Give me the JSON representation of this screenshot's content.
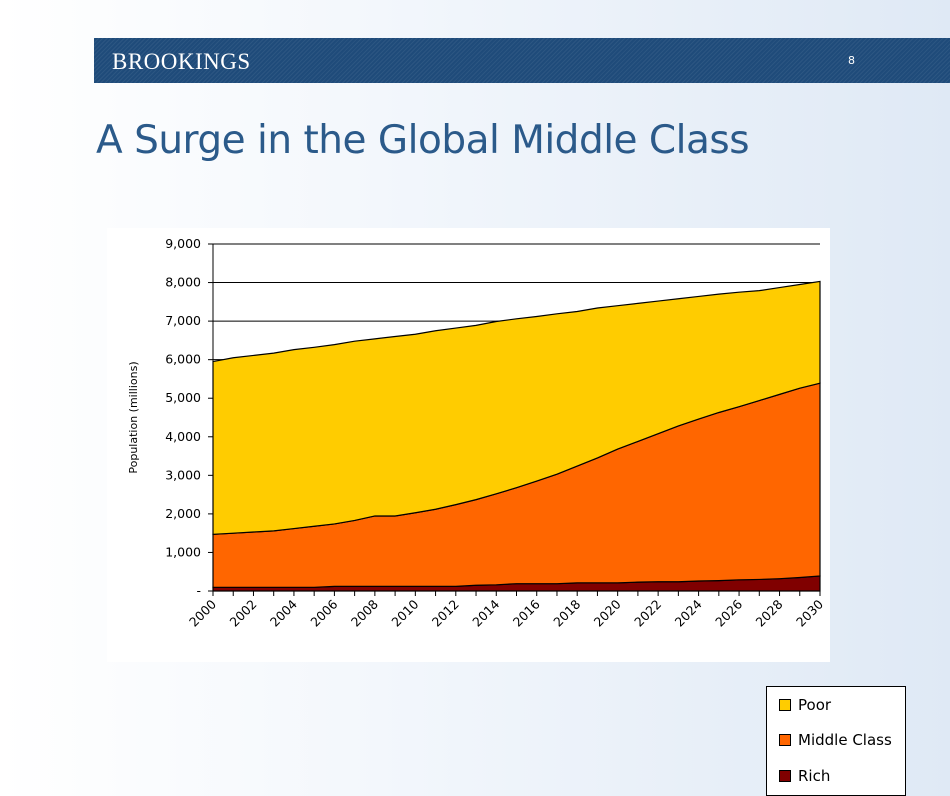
{
  "header": {
    "brand": "BROOKINGS",
    "page_number": "8"
  },
  "title": "A Surge in the Global Middle Class",
  "chart_data": {
    "type": "area",
    "stacked": true,
    "ylabel": "Population (millions)",
    "xlabel": "",
    "ylim": [
      0,
      9000
    ],
    "yticks": [
      0,
      1000,
      2000,
      3000,
      4000,
      5000,
      6000,
      7000,
      8000,
      9000
    ],
    "ytick_labels": [
      "-",
      "1,000",
      "2,000",
      "3,000",
      "4,000",
      "5,000",
      "6,000",
      "7,000",
      "8,000",
      "9,000"
    ],
    "xtick_labels": [
      "2000",
      "2002",
      "2004",
      "2006",
      "2008",
      "2010",
      "2012",
      "2014",
      "2016",
      "2018",
      "2020",
      "2022",
      "2024",
      "2026",
      "2028",
      "2030"
    ],
    "x": [
      2000,
      2001,
      2002,
      2003,
      2004,
      2005,
      2006,
      2007,
      2008,
      2009,
      2010,
      2011,
      2012,
      2013,
      2014,
      2015,
      2016,
      2017,
      2018,
      2019,
      2020,
      2021,
      2022,
      2023,
      2024,
      2025,
      2026,
      2027,
      2028,
      2029,
      2030
    ],
    "grid": "horizontal",
    "legend_position": "bottom-right",
    "series": [
      {
        "name": "Rich",
        "color": "#800000",
        "values": [
          95,
          95,
          95,
          95,
          95,
          95,
          120,
          120,
          120,
          120,
          120,
          120,
          120,
          150,
          160,
          190,
          190,
          190,
          210,
          210,
          210,
          230,
          240,
          240,
          260,
          270,
          290,
          300,
          320,
          350,
          390
        ]
      },
      {
        "name": "Middle Class",
        "color": "#ff6600",
        "values": [
          1375,
          1405,
          1435,
          1465,
          1525,
          1585,
          1620,
          1710,
          1826,
          1826,
          1910,
          2000,
          2120,
          2220,
          2360,
          2490,
          2660,
          2840,
          3030,
          3240,
          3470,
          3650,
          3840,
          4040,
          4200,
          4360,
          4490,
          4640,
          4780,
          4910,
          5000
        ]
      },
      {
        "name": "Poor",
        "color": "#ffcc00",
        "values": [
          4480,
          4550,
          4580,
          4610,
          4640,
          4640,
          4650,
          4650,
          4594,
          4654,
          4630,
          4630,
          4580,
          4520,
          4470,
          4380,
          4270,
          4160,
          4010,
          3890,
          3720,
          3580,
          3440,
          3300,
          3180,
          3070,
          2970,
          2850,
          2770,
          2690,
          2640
        ]
      }
    ],
    "legend_order": [
      "Poor",
      "Middle Class",
      "Rich"
    ]
  }
}
